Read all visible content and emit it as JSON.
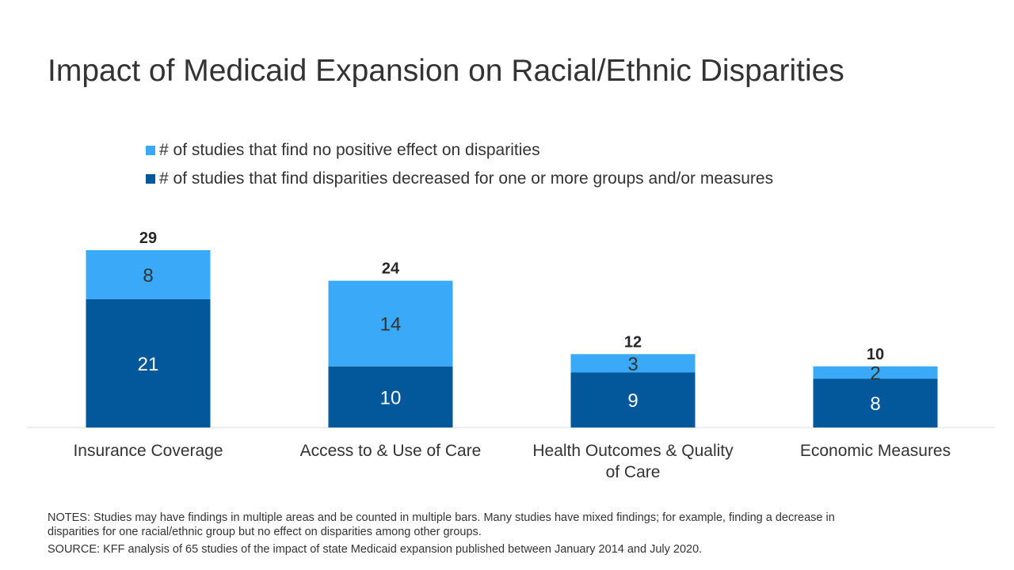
{
  "title": "Impact of Medicaid Expansion on Racial/Ethnic Disparities",
  "notes": "NOTES: Studies may have findings in multiple areas and be counted in multiple bars. Many studies have mixed findings; for example, finding a decrease in disparities for one racial/ethnic group but no effect on disparities among other groups.",
  "source": "SOURCE: KFF analysis of 65 studies of the impact of state Medicaid expansion published between January 2014 and July 2020.",
  "colors": {
    "decreased": "#02589A",
    "no_effect": "#3AA9F8"
  },
  "chart_data": {
    "type": "bar",
    "stacked": true,
    "title": "Impact of Medicaid Expansion on Racial/Ethnic Disparities",
    "categories": [
      [
        "Insurance Coverage"
      ],
      [
        "Access to & Use of Care"
      ],
      [
        "Health Outcomes & Quality",
        "of Care"
      ],
      [
        "Economic Measures"
      ]
    ],
    "series": [
      {
        "name": "# of studies that find disparities decreased for one or more groups and/or measures",
        "values": [
          21,
          10,
          9,
          8
        ]
      },
      {
        "name": "# of studies that find no positive effect on disparities",
        "values": [
          8,
          14,
          3,
          2
        ]
      }
    ],
    "totals": [
      29,
      24,
      12,
      10
    ],
    "legend_order": [
      1,
      0
    ],
    "legend_position": "top",
    "ylim": [
      0,
      29
    ],
    "grid": false
  }
}
